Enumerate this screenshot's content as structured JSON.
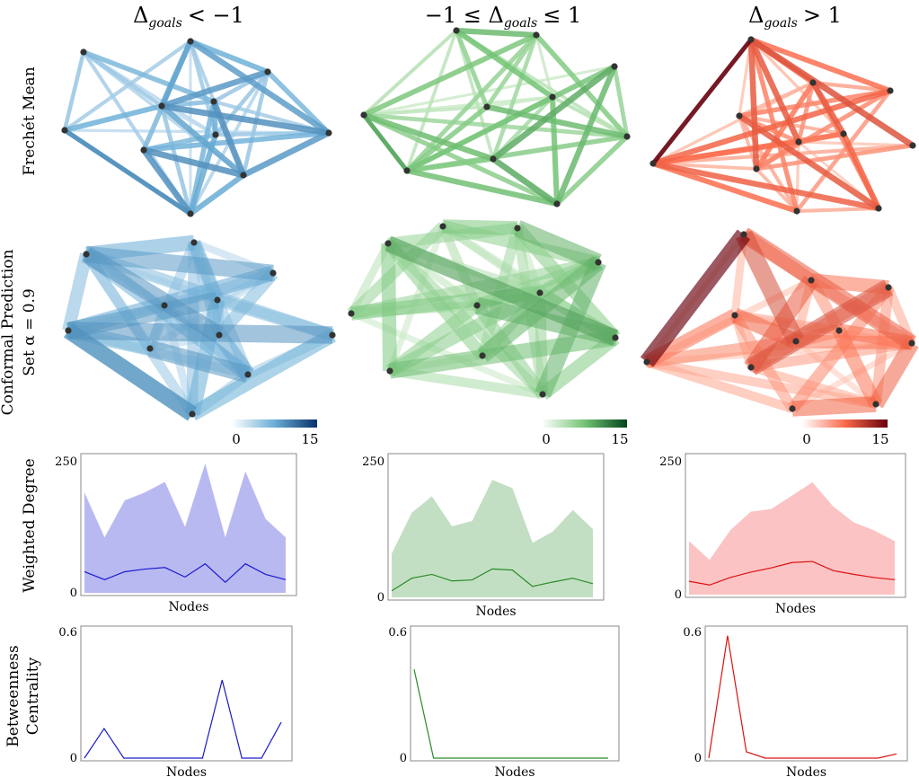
{
  "columns": [
    {
      "title_main": "Δ",
      "title_sub": "goals",
      "title_rel": "< −1",
      "title_prefix": "",
      "scheme": "blue"
    },
    {
      "title_main": "Δ",
      "title_sub": "goals",
      "title_rel": "≤ 1",
      "title_prefix": "−1 ≤ ",
      "scheme": "green"
    },
    {
      "title_main": "Δ",
      "title_sub": "goals",
      "title_rel": "> 1",
      "title_prefix": "",
      "scheme": "red"
    }
  ],
  "row_labels": {
    "frechet": "Frechét Mean",
    "conformal_line1": "Conformal Prediction",
    "conformal_line2": "Set α = 0.9",
    "degree": "Weighted Degree",
    "betweenness_line1": "Betweenness",
    "betweenness_line2": "Centrality"
  },
  "colorbar": {
    "min_label": "0",
    "max_label": "15"
  },
  "colors": {
    "blue": {
      "light": "#dbe9f6",
      "mid": "#6aaed6",
      "dark": "#08306b",
      "line": "#1a1acc",
      "fill": "#b9b9f2"
    },
    "green": {
      "light": "#e5f5e0",
      "mid": "#74c476",
      "dark": "#00441b",
      "line": "#2a8a2a",
      "fill": "#c3dfc3"
    },
    "red": {
      "light": "#fee0d2",
      "mid": "#fb6a4a",
      "dark": "#67000d",
      "line": "#dd1111",
      "fill": "#fbc3c3"
    }
  },
  "chart_data": [
    {
      "type": "area",
      "panel": "weighted-degree",
      "column": 0,
      "xlabel": "Nodes",
      "ylabel": "Weighted Degree",
      "yticks": [
        "0",
        "250"
      ],
      "ylim": [
        0,
        250
      ],
      "upper": [
        190,
        105,
        175,
        190,
        210,
        125,
        245,
        105,
        230,
        140,
        105
      ],
      "median": [
        40,
        25,
        40,
        45,
        48,
        30,
        55,
        20,
        55,
        35,
        25
      ]
    },
    {
      "type": "area",
      "panel": "weighted-degree",
      "column": 1,
      "xlabel": "Nodes",
      "ylabel": "",
      "yticks": [
        "0",
        "250"
      ],
      "ylim": [
        0,
        250
      ],
      "upper": [
        80,
        155,
        185,
        130,
        140,
        215,
        200,
        100,
        120,
        160,
        125
      ],
      "median": [
        12,
        35,
        42,
        30,
        32,
        52,
        50,
        20,
        28,
        35,
        25
      ]
    },
    {
      "type": "area",
      "panel": "weighted-degree",
      "column": 2,
      "xlabel": "Nodes",
      "ylabel": "",
      "yticks": [
        "0",
        "250"
      ],
      "ylim": [
        0,
        250
      ],
      "upper": [
        100,
        65,
        120,
        155,
        160,
        185,
        210,
        165,
        135,
        120,
        100
      ],
      "median": [
        25,
        18,
        32,
        42,
        50,
        60,
        62,
        45,
        38,
        32,
        28
      ]
    },
    {
      "type": "line",
      "panel": "betweenness",
      "column": 0,
      "xlabel": "Nodes",
      "ylabel": "Betweenness Centrality",
      "yticks": [
        "0",
        "0.6"
      ],
      "ylim": [
        0,
        0.6
      ],
      "values": [
        0,
        0.14,
        0,
        0,
        0,
        0,
        0,
        0.37,
        0,
        0,
        0.17
      ]
    },
    {
      "type": "line",
      "panel": "betweenness",
      "column": 1,
      "xlabel": "Nodes",
      "ylabel": "",
      "yticks": [
        "0",
        "0.6"
      ],
      "ylim": [
        0,
        0.6
      ],
      "values": [
        0.42,
        0,
        0,
        0,
        0,
        0,
        0,
        0,
        0,
        0,
        0
      ]
    },
    {
      "type": "line",
      "panel": "betweenness",
      "column": 2,
      "xlabel": "Nodes",
      "ylabel": "",
      "yticks": [
        "0",
        "0.6"
      ],
      "ylim": [
        0,
        0.6
      ],
      "values": [
        0,
        0.58,
        0.03,
        0,
        0,
        0,
        0,
        0,
        0,
        0,
        0.02
      ]
    }
  ]
}
